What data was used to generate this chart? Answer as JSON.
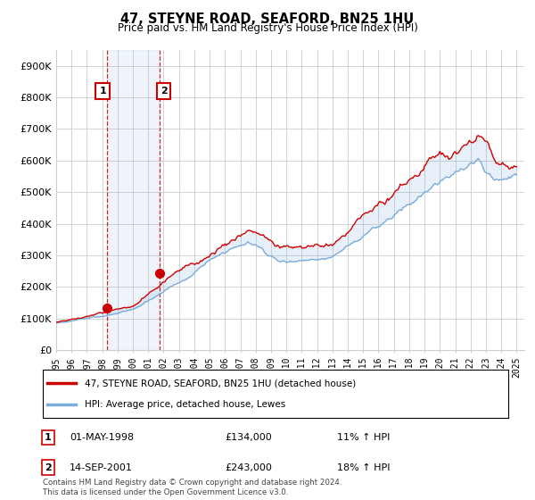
{
  "title": "47, STEYNE ROAD, SEAFORD, BN25 1HU",
  "subtitle": "Price paid vs. HM Land Registry's House Price Index (HPI)",
  "ylabel_ticks": [
    "£0",
    "£100K",
    "£200K",
    "£300K",
    "£400K",
    "£500K",
    "£600K",
    "£700K",
    "£800K",
    "£900K"
  ],
  "ytick_vals": [
    0,
    100000,
    200000,
    300000,
    400000,
    500000,
    600000,
    700000,
    800000,
    900000
  ],
  "ylim": [
    0,
    950000
  ],
  "xlim_start": 1995.0,
  "xlim_end": 2025.5,
  "legend_line1": "47, STEYNE ROAD, SEAFORD, BN25 1HU (detached house)",
  "legend_line2": "HPI: Average price, detached house, Lewes",
  "transaction1_label": "1",
  "transaction1_date": "01-MAY-1998",
  "transaction1_price": "£134,000",
  "transaction1_hpi": "11% ↑ HPI",
  "transaction1_x": 1998.33,
  "transaction1_y": 134000,
  "transaction2_label": "2",
  "transaction2_date": "14-SEP-2001",
  "transaction2_price": "£243,000",
  "transaction2_hpi": "18% ↑ HPI",
  "transaction2_x": 2001.71,
  "transaction2_y": 243000,
  "footer": "Contains HM Land Registry data © Crown copyright and database right 2024.\nThis data is licensed under the Open Government Licence v3.0.",
  "line_color_red": "#cc0000",
  "line_color_blue": "#7aacdc",
  "highlight_box_color": "#ddeeff",
  "transaction_color": "#cc0000",
  "background_color": "#ffffff",
  "grid_color": "#cccccc"
}
